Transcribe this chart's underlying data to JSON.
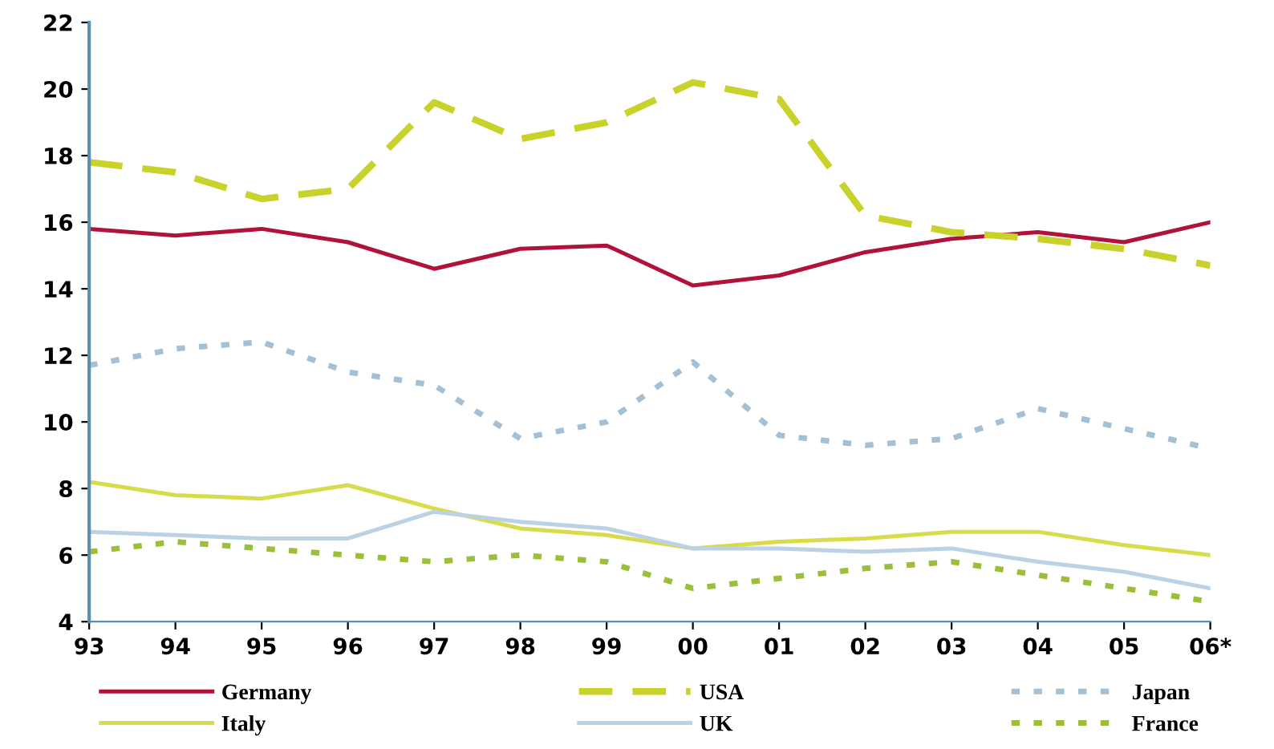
{
  "chart_data": {
    "type": "line",
    "categories": [
      "93",
      "94",
      "95",
      "96",
      "97",
      "98",
      "99",
      "00",
      "01",
      "02",
      "03",
      "04",
      "05",
      "06*"
    ],
    "series": [
      {
        "name": "Germany",
        "color": "#b0123a",
        "line_style": "solid",
        "values": [
          15.8,
          15.6,
          15.8,
          15.4,
          14.6,
          15.2,
          15.3,
          14.1,
          14.4,
          15.1,
          15.5,
          15.7,
          15.4,
          16.0
        ]
      },
      {
        "name": "Italy",
        "color": "#d8dc4a",
        "line_style": "solid",
        "values": [
          8.2,
          7.8,
          7.7,
          8.1,
          7.4,
          6.8,
          6.6,
          6.2,
          6.4,
          6.5,
          6.7,
          6.7,
          6.3,
          6.0
        ]
      },
      {
        "name": "USA",
        "color": "#c8d22a",
        "line_style": "dashed",
        "values": [
          17.8,
          17.5,
          16.7,
          17.0,
          19.6,
          18.5,
          19.0,
          20.2,
          19.7,
          16.2,
          15.7,
          15.5,
          15.2,
          14.7
        ]
      },
      {
        "name": "UK",
        "color": "#bcd2e4",
        "line_style": "solid",
        "values": [
          6.7,
          6.6,
          6.5,
          6.5,
          7.3,
          7.0,
          6.8,
          6.2,
          6.2,
          6.1,
          6.2,
          5.8,
          5.5,
          5.0
        ]
      },
      {
        "name": "Japan",
        "color": "#a4c0d4",
        "line_style": "dotted",
        "values": [
          11.7,
          12.2,
          12.4,
          11.5,
          11.1,
          9.5,
          10.0,
          11.8,
          9.6,
          9.3,
          9.5,
          10.4,
          9.8,
          9.2
        ]
      },
      {
        "name": "France",
        "color": "#9cbf3a",
        "line_style": "dotted",
        "values": [
          6.1,
          6.4,
          6.2,
          6.0,
          5.8,
          6.0,
          5.8,
          5.0,
          5.3,
          5.6,
          5.8,
          5.4,
          5.0,
          4.6
        ]
      }
    ],
    "ylim": [
      4,
      22
    ],
    "yticks": [
      4,
      6,
      8,
      10,
      12,
      14,
      16,
      18,
      20,
      22
    ],
    "legend": "bottom",
    "marker": "none"
  }
}
